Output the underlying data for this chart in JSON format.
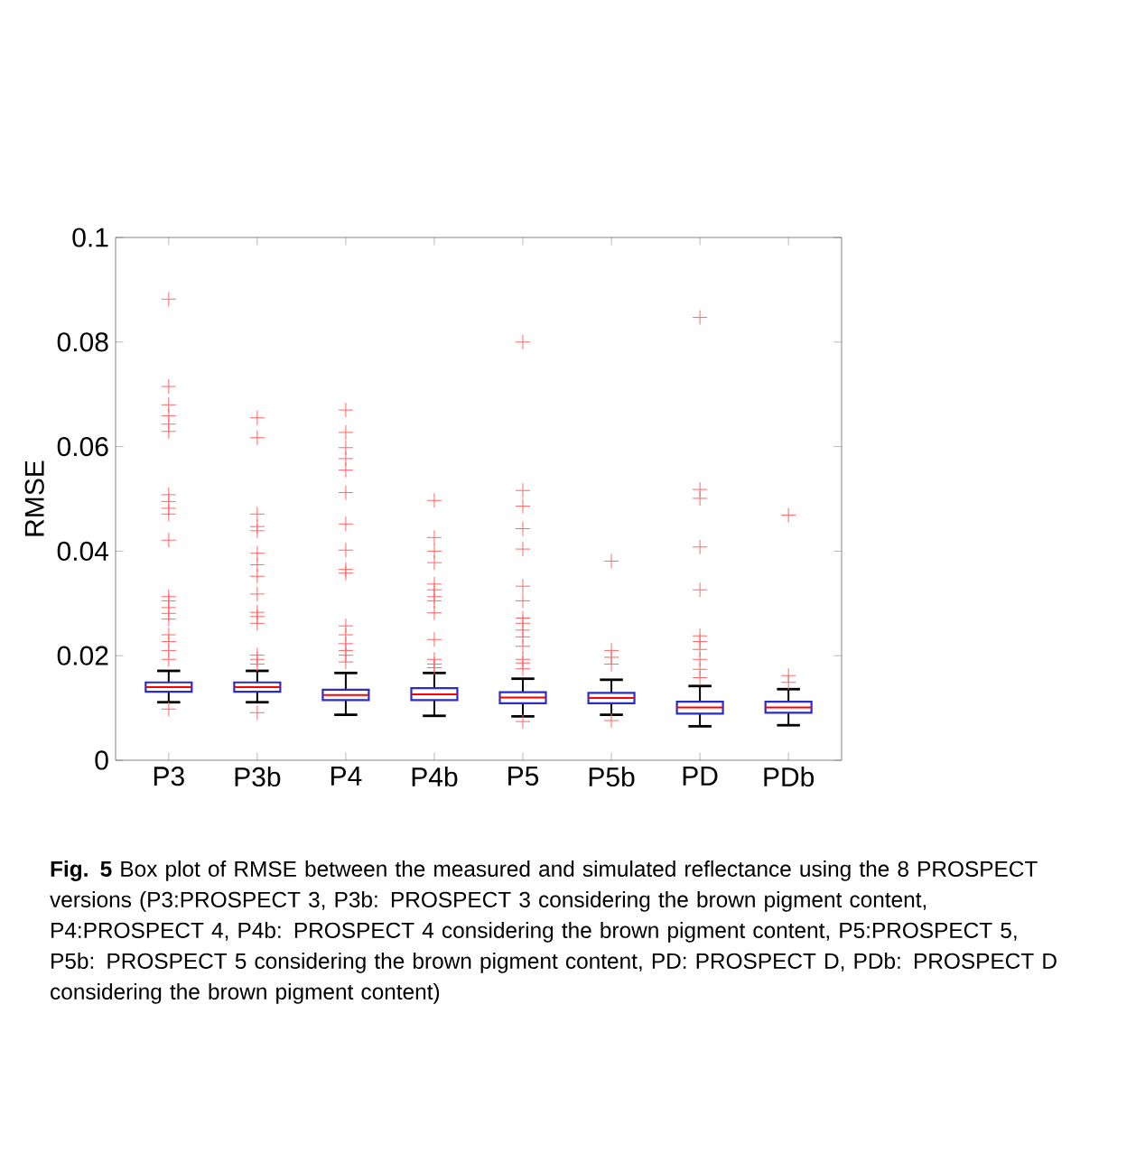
{
  "chart_data": {
    "type": "box",
    "ylabel": "RMSE",
    "categories": [
      "P3",
      "P3b",
      "P4",
      "P4b",
      "P5",
      "P5b",
      "PD",
      "PDb"
    ],
    "ylim": [
      0,
      0.1
    ],
    "yticks": [
      0,
      0.02,
      0.04,
      0.06,
      0.08,
      0.1
    ],
    "grid": false,
    "series": [
      {
        "color": "#2b2bc8",
        "boxes": [
          {
            "low": 0.0111,
            "q1": 0.0131,
            "median": 0.014,
            "q3": 0.0149,
            "high": 0.0171,
            "outliers": [
              0.0882,
              0.0715,
              0.068,
              0.0659,
              0.0643,
              0.0629,
              0.0508,
              0.0495,
              0.0482,
              0.0471,
              0.0421,
              0.0313,
              0.0305,
              0.0292,
              0.0281,
              0.027,
              0.024,
              0.0227,
              0.021,
              0.0193,
              0.0098
            ]
          },
          {
            "low": 0.0111,
            "q1": 0.0131,
            "median": 0.014,
            "q3": 0.0149,
            "high": 0.0171,
            "outliers": [
              0.0655,
              0.0617,
              0.0471,
              0.0447,
              0.0439,
              0.0396,
              0.0374,
              0.0352,
              0.0318,
              0.0283,
              0.0275,
              0.0262,
              0.0201,
              0.0193,
              0.0184,
              0.0091
            ]
          },
          {
            "low": 0.0087,
            "q1": 0.0115,
            "median": 0.0125,
            "q3": 0.0135,
            "high": 0.0167,
            "outliers": [
              0.067,
              0.0627,
              0.0598,
              0.0577,
              0.0555,
              0.0512,
              0.0452,
              0.0402,
              0.0365,
              0.0358,
              0.0257,
              0.024,
              0.0223,
              0.021,
              0.0201,
              0.0188
            ]
          },
          {
            "low": 0.0085,
            "q1": 0.0115,
            "median": 0.0126,
            "q3": 0.0138,
            "high": 0.0167,
            "outliers": [
              0.0497,
              0.0426,
              0.04,
              0.0378,
              0.0337,
              0.0326,
              0.0313,
              0.0305,
              0.0282,
              0.0231,
              0.0193,
              0.0184,
              0.0177
            ]
          },
          {
            "low": 0.0084,
            "q1": 0.0109,
            "median": 0.012,
            "q3": 0.013,
            "high": 0.0156,
            "outliers": [
              0.08,
              0.0516,
              0.0486,
              0.0443,
              0.0404,
              0.0333,
              0.0305,
              0.0272,
              0.0262,
              0.0249,
              0.0236,
              0.0218,
              0.0193,
              0.0186,
              0.0175,
              0.0074
            ]
          },
          {
            "low": 0.0087,
            "q1": 0.0109,
            "median": 0.0119,
            "q3": 0.0129,
            "high": 0.0154,
            "outliers": [
              0.0381,
              0.021,
              0.0197,
              0.0184,
              0.0076
            ]
          },
          {
            "low": 0.0065,
            "q1": 0.0089,
            "median": 0.0101,
            "q3": 0.0112,
            "high": 0.0142,
            "outliers": [
              0.0847,
              0.0518,
              0.0501,
              0.0408,
              0.0326,
              0.0238,
              0.0227,
              0.0212,
              0.0193,
              0.0174,
              0.0158
            ]
          },
          {
            "low": 0.0067,
            "q1": 0.0091,
            "median": 0.0101,
            "q3": 0.0112,
            "high": 0.0136,
            "outliers": [
              0.0469,
              0.0162,
              0.0149
            ]
          }
        ]
      }
    ],
    "annotations": [
      "**Fig. 5** Box plot of RMSE between the measured and simulated reflectance using the 8 PROSPECT versions (P3:PROSPECT 3, P3b: PROSPECT 3 considering the brown pigment content, P4:PROSPECT 4, P4b: PROSPECT 4 considering the brown pigment content, P5:PROSPECT 5, P5b: PROSPECT 5 considering the brown pigment content, PD: PROSPECT D, PDb: PROSPECT D considering the brown pigment content)"
    ]
  }
}
